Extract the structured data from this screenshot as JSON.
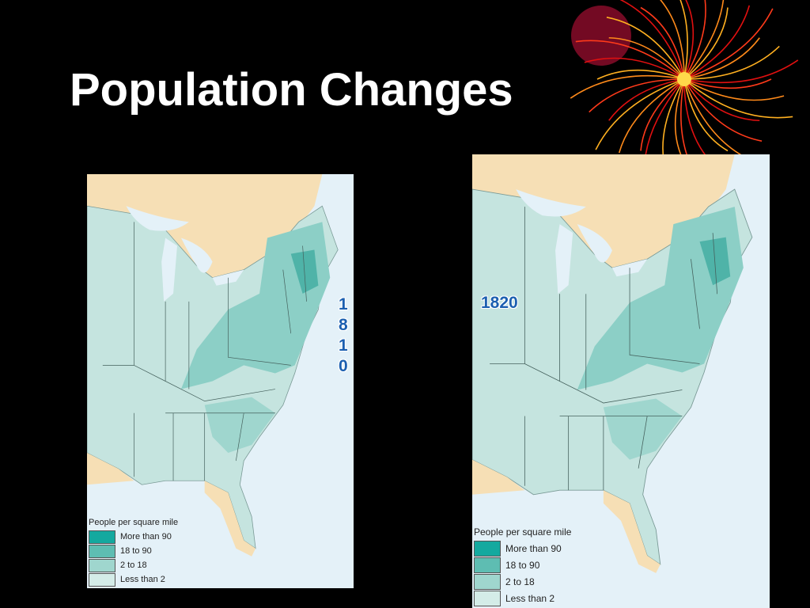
{
  "title": "Population Changes",
  "maps": [
    {
      "year": "1810",
      "legend": {
        "title": "People per square mile",
        "items": [
          "More than 90",
          "18 to 90",
          "2 to 18",
          "Less than 2"
        ]
      }
    },
    {
      "year": "1820",
      "legend": {
        "title": "People per square mile",
        "items": [
          "More than 90",
          "18 to 90",
          "2 to 18",
          "Less than 2"
        ]
      }
    }
  ]
}
